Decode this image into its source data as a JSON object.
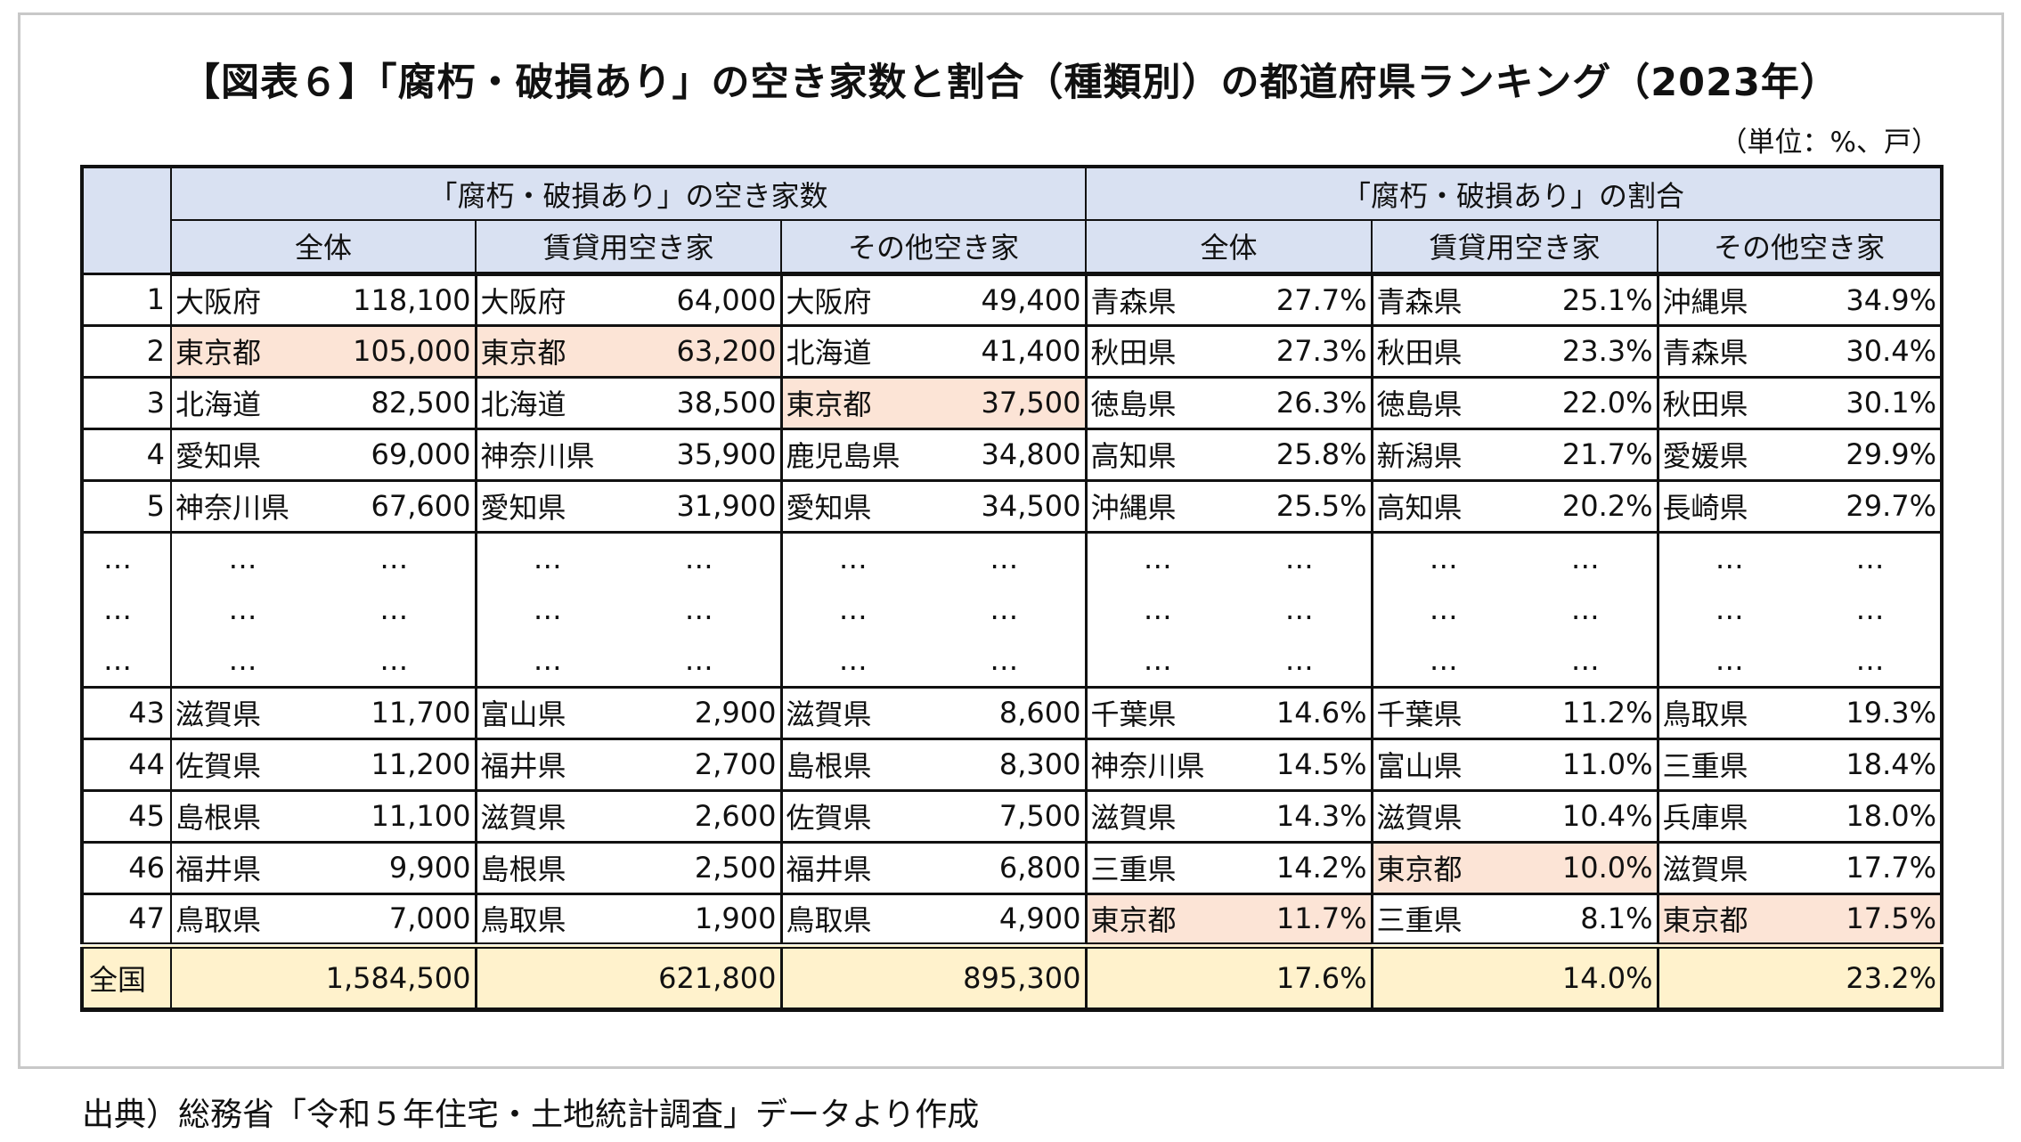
{
  "title": "【図表６】「腐朽・破損あり」の空き家数と割合（種類別）の都道府県ランキング（2023年）",
  "unit": "（単位：%、戸）",
  "headers": {
    "group_count": "「腐朽・破損あり」の空き家数",
    "group_ratio": "「腐朽・破損あり」の割合",
    "sub": [
      "全体",
      "賃貸用空き家",
      "その他空き家",
      "全体",
      "賃貸用空き家",
      "その他空き家"
    ]
  },
  "top_rows": [
    {
      "rank": "1",
      "cells": [
        [
          "大阪府",
          "118,100"
        ],
        [
          "大阪府",
          "64,000"
        ],
        [
          "大阪府",
          "49,400"
        ],
        [
          "青森県",
          "27.7%"
        ],
        [
          "青森県",
          "25.1%"
        ],
        [
          "沖縄県",
          "34.9%"
        ]
      ],
      "hl": []
    },
    {
      "rank": "2",
      "cells": [
        [
          "東京都",
          "105,000"
        ],
        [
          "東京都",
          "63,200"
        ],
        [
          "北海道",
          "41,400"
        ],
        [
          "秋田県",
          "27.3%"
        ],
        [
          "秋田県",
          "23.3%"
        ],
        [
          "青森県",
          "30.4%"
        ]
      ],
      "hl": [
        0,
        1
      ]
    },
    {
      "rank": "3",
      "cells": [
        [
          "北海道",
          "82,500"
        ],
        [
          "北海道",
          "38,500"
        ],
        [
          "東京都",
          "37,500"
        ],
        [
          "徳島県",
          "26.3%"
        ],
        [
          "徳島県",
          "22.0%"
        ],
        [
          "秋田県",
          "30.1%"
        ]
      ],
      "hl": [
        2
      ]
    },
    {
      "rank": "4",
      "cells": [
        [
          "愛知県",
          "69,000"
        ],
        [
          "神奈川県",
          "35,900"
        ],
        [
          "鹿児島県",
          "34,800"
        ],
        [
          "高知県",
          "25.8%"
        ],
        [
          "新潟県",
          "21.7%"
        ],
        [
          "愛媛県",
          "29.9%"
        ]
      ],
      "hl": []
    },
    {
      "rank": "5",
      "cells": [
        [
          "神奈川県",
          "67,600"
        ],
        [
          "愛知県",
          "31,900"
        ],
        [
          "愛知県",
          "34,500"
        ],
        [
          "沖縄県",
          "25.5%"
        ],
        [
          "高知県",
          "20.2%"
        ],
        [
          "長崎県",
          "29.7%"
        ]
      ],
      "hl": []
    }
  ],
  "ellipsis": "…",
  "bottom_rows": [
    {
      "rank": "43",
      "cells": [
        [
          "滋賀県",
          "11,700"
        ],
        [
          "富山県",
          "2,900"
        ],
        [
          "滋賀県",
          "8,600"
        ],
        [
          "千葉県",
          "14.6%"
        ],
        [
          "千葉県",
          "11.2%"
        ],
        [
          "鳥取県",
          "19.3%"
        ]
      ],
      "hl": []
    },
    {
      "rank": "44",
      "cells": [
        [
          "佐賀県",
          "11,200"
        ],
        [
          "福井県",
          "2,700"
        ],
        [
          "島根県",
          "8,300"
        ],
        [
          "神奈川県",
          "14.5%"
        ],
        [
          "富山県",
          "11.0%"
        ],
        [
          "三重県",
          "18.4%"
        ]
      ],
      "hl": []
    },
    {
      "rank": "45",
      "cells": [
        [
          "島根県",
          "11,100"
        ],
        [
          "滋賀県",
          "2,600"
        ],
        [
          "佐賀県",
          "7,500"
        ],
        [
          "滋賀県",
          "14.3%"
        ],
        [
          "滋賀県",
          "10.4%"
        ],
        [
          "兵庫県",
          "18.0%"
        ]
      ],
      "hl": []
    },
    {
      "rank": "46",
      "cells": [
        [
          "福井県",
          "9,900"
        ],
        [
          "島根県",
          "2,500"
        ],
        [
          "福井県",
          "6,800"
        ],
        [
          "三重県",
          "14.2%"
        ],
        [
          "東京都",
          "10.0%"
        ],
        [
          "滋賀県",
          "17.7%"
        ]
      ],
      "hl": [
        4
      ]
    },
    {
      "rank": "47",
      "cells": [
        [
          "鳥取県",
          "7,000"
        ],
        [
          "鳥取県",
          "1,900"
        ],
        [
          "鳥取県",
          "4,900"
        ],
        [
          "東京都",
          "11.7%"
        ],
        [
          "三重県",
          "8.1%"
        ],
        [
          "東京都",
          "17.5%"
        ]
      ],
      "hl": [
        3,
        5
      ]
    }
  ],
  "total": {
    "label": "全国",
    "values": [
      "1,584,500",
      "621,800",
      "895,300",
      "17.6%",
      "14.0%",
      "23.2%"
    ]
  },
  "source": "出典）総務省「令和５年住宅・土地統計調査」データより作成",
  "colors": {
    "header": "#d9e1f2",
    "highlight": "#fce4d6",
    "total": "#fff2cc"
  }
}
